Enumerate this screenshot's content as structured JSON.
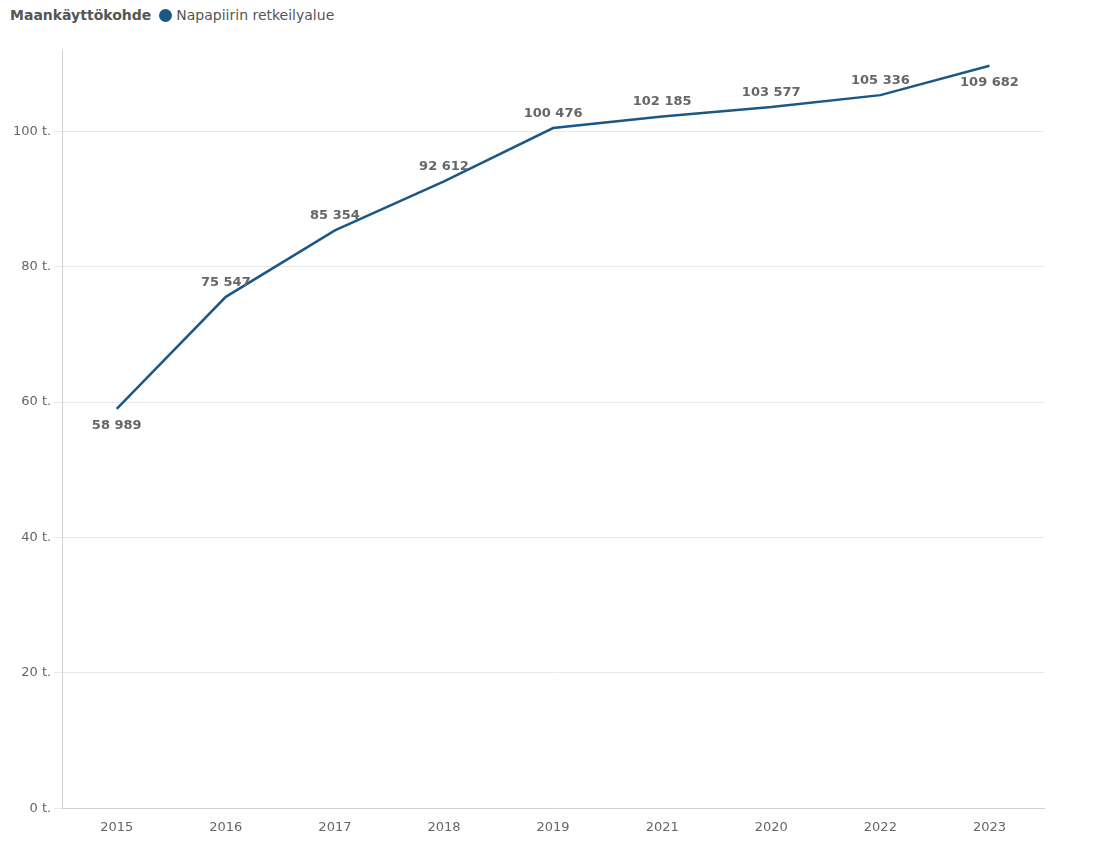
{
  "chart_data": {
    "type": "line",
    "legend_title": "Maankäyttökohde",
    "legend": "top-left",
    "categories": [
      "2015",
      "2016",
      "2017",
      "2018",
      "2019",
      "2021",
      "2020",
      "2022",
      "2023"
    ],
    "series": [
      {
        "name": "Napapiirin retkeilyalue",
        "color": "#1b5886",
        "values": [
          58989,
          75547,
          85354,
          92612,
          100476,
          102185,
          103577,
          105336,
          109682
        ],
        "value_labels": [
          "58 989",
          "75 547",
          "85 354",
          "92 612",
          "100 476",
          "102 185",
          "103 577",
          "105 336",
          "109 682"
        ]
      }
    ],
    "ylim": [
      0,
      112000
    ],
    "yticks": [
      {
        "value": 0,
        "label": "0 t."
      },
      {
        "value": 20000,
        "label": "20 t."
      },
      {
        "value": 40000,
        "label": "40 t."
      },
      {
        "value": 60000,
        "label": "60 t."
      },
      {
        "value": 80000,
        "label": "80 t."
      },
      {
        "value": 100000,
        "label": "100 t."
      }
    ],
    "grid": true,
    "data_labels": true
  }
}
